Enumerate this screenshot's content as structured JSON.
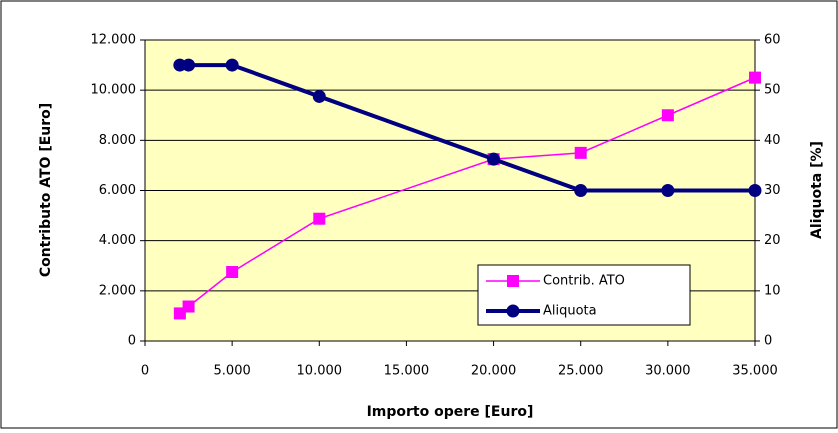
{
  "chart_data": {
    "type": "line",
    "x_label": "Importo opere [Euro]",
    "y_label": "Contributo ATO [Euro]",
    "y2_label": "Aliquota [%]",
    "x": [
      2000,
      2500,
      5000,
      10000,
      20000,
      25000,
      30000,
      35000
    ],
    "series": [
      {
        "name": "Contrib. ATO",
        "color": "#ff00ff",
        "marker": "square",
        "values": [
          1100,
          1375,
          2750,
          4875,
          7250,
          7500,
          9000,
          10500
        ]
      },
      {
        "name": "Aliquota",
        "color": "#000080",
        "marker": "circle",
        "axis": "y2",
        "values": [
          55,
          55,
          55,
          48.75,
          36.25,
          30,
          30,
          30
        ]
      }
    ],
    "xlim": [
      0,
      35000
    ],
    "xticks": [
      0,
      {
        "value": 5000,
        "label": "5.000"
      },
      {
        "value": 10000,
        "label": "10.000"
      },
      {
        "value": 15000,
        "label": "15.000"
      },
      {
        "value": 20000,
        "label": "20.000"
      },
      {
        "value": 25000,
        "label": "25.000"
      },
      {
        "value": 30000,
        "label": "30.000"
      },
      {
        "value": 35000,
        "label": "35.000"
      }
    ],
    "ylim": [
      0,
      12000
    ],
    "yticks": [
      0,
      {
        "value": 2000,
        "label": "2.000"
      },
      {
        "value": 4000,
        "label": "4.000"
      },
      {
        "value": 6000,
        "label": "6.000"
      },
      {
        "value": 8000,
        "label": "8.000"
      },
      {
        "value": 10000,
        "label": "10.000"
      },
      {
        "value": 12000,
        "label": "12.000"
      }
    ],
    "y2lim": [
      0,
      60
    ],
    "y2ticks": [
      0,
      10,
      20,
      30,
      40,
      50,
      60
    ],
    "grid": true,
    "plot_background": "#ffffc0"
  }
}
